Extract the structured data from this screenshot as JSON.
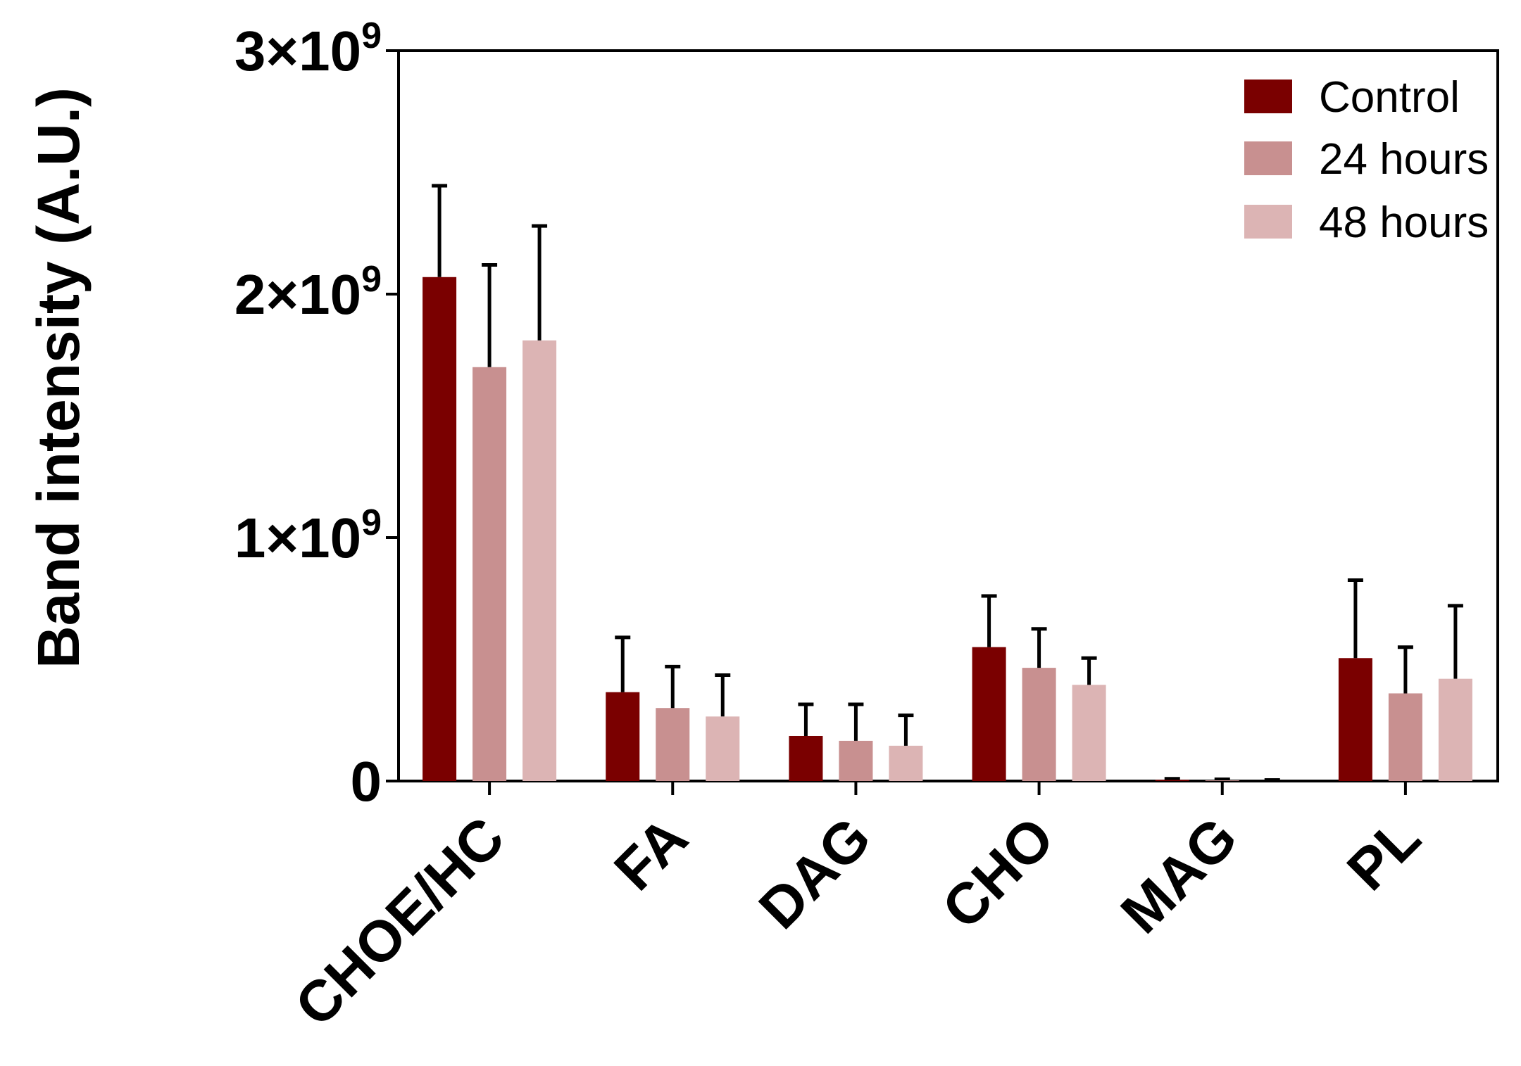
{
  "chart_data": {
    "type": "bar",
    "title": "",
    "xlabel": "",
    "ylabel": "Band intensity (A.U.)",
    "ylim": [
      0,
      3000000000
    ],
    "yticks": [
      {
        "value": 0,
        "label": "0",
        "exp": ""
      },
      {
        "value": 1000000000,
        "label": "1×10",
        "exp": "9"
      },
      {
        "value": 2000000000,
        "label": "2×10",
        "exp": "9"
      },
      {
        "value": 3000000000,
        "label": "3×10",
        "exp": "9"
      }
    ],
    "categories": [
      "CHOE/HC",
      "FA",
      "DAG",
      "CHO",
      "MAG",
      "PL"
    ],
    "legend_position": "top-right",
    "grid": false,
    "series": [
      {
        "name": "Control",
        "color": "#7a0000",
        "values": [
          2070000000,
          365000000,
          185000000,
          550000000,
          5000000,
          505000000
        ],
        "errors": [
          375000000,
          225000000,
          130000000,
          210000000,
          0,
          320000000
        ]
      },
      {
        "name": "24 hours",
        "color": "#c89090",
        "values": [
          1700000000,
          300000000,
          165000000,
          465000000,
          3000000,
          360000000
        ],
        "errors": [
          420000000,
          170000000,
          150000000,
          160000000,
          0,
          190000000
        ]
      },
      {
        "name": "48 hours",
        "color": "#dcb4b4",
        "values": [
          1810000000,
          265000000,
          145000000,
          395000000,
          0,
          420000000
        ],
        "errors": [
          470000000,
          170000000,
          125000000,
          110000000,
          0,
          300000000
        ]
      }
    ]
  }
}
